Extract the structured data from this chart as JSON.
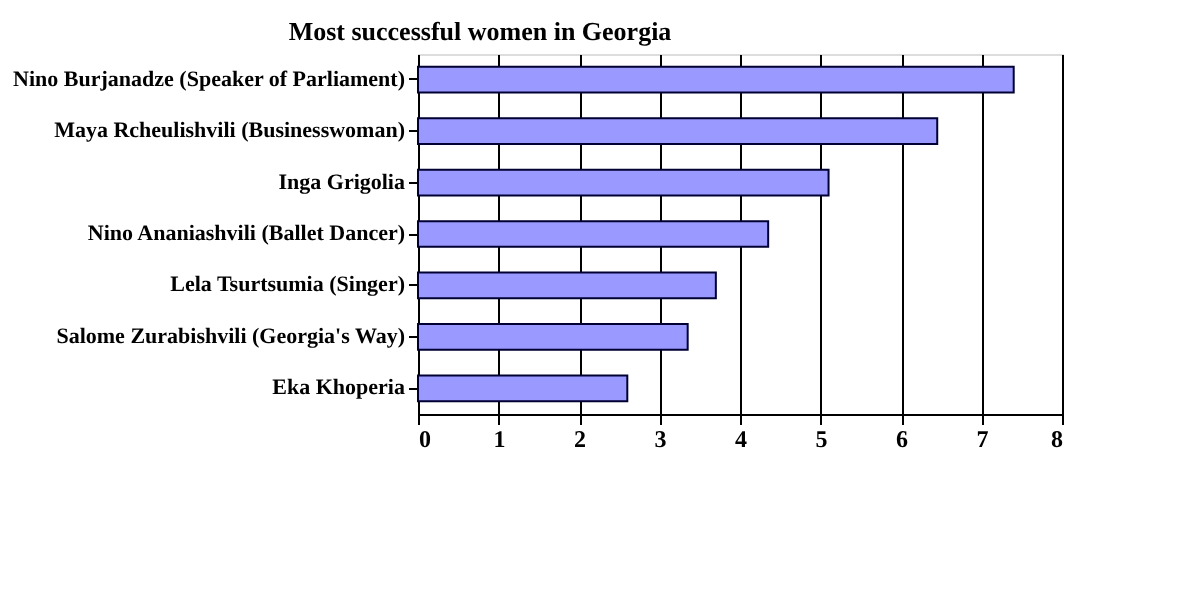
{
  "chart_data": {
    "type": "bar",
    "orientation": "horizontal",
    "title": "Most successful women in Georgia",
    "categories": [
      "Nino Burjanadze (Speaker of Parliament)",
      "Maya Rcheulishvili (Businesswoman)",
      "Inga Grigolia",
      "Nino Ananiashvili (Ballet Dancer)",
      "Lela Tsurtsumia (Singer)",
      "Salome Zurabishvili (Georgia's Way)",
      "Eka Khoperia"
    ],
    "values": [
      7.4,
      6.45,
      5.1,
      4.35,
      3.7,
      3.35,
      2.6
    ],
    "color": "#9999ff",
    "xlim": [
      0,
      8
    ],
    "xticks": [
      0,
      1,
      2,
      3,
      4,
      5,
      6,
      7,
      8
    ],
    "grid": "x"
  }
}
